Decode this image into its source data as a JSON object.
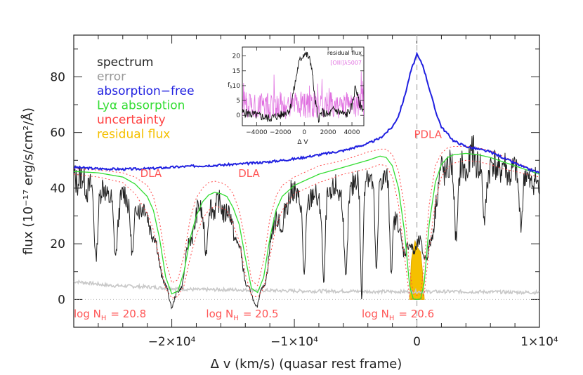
{
  "chart_data": {
    "type": "line",
    "xlabel": "Δ v (km/s) (quasar rest frame)",
    "ylabel": "flux (10⁻¹⁷ erg/s/cm²/Å)",
    "xlim": [
      -28000,
      10000
    ],
    "ylim": [
      -10,
      95
    ],
    "x_ticks": [
      {
        "value": -20000,
        "label": "−2×10⁴"
      },
      {
        "value": -10000,
        "label": "−1×10⁴"
      },
      {
        "value": 0,
        "label": "0"
      },
      {
        "value": 10000,
        "label": "1×10⁴"
      }
    ],
    "y_ticks": [
      {
        "value": 0,
        "label": "0"
      },
      {
        "value": 20,
        "label": "20"
      },
      {
        "value": 40,
        "label": "40"
      },
      {
        "value": 60,
        "label": "60"
      },
      {
        "value": 80,
        "label": "80"
      }
    ],
    "legend": [
      {
        "label": "spectrum",
        "color": "#222222"
      },
      {
        "label": "error",
        "color": "#999999"
      },
      {
        "label": "absorption−free",
        "color": "#2020e0"
      },
      {
        "label": "Lyα absorption",
        "color": "#33dd33"
      },
      {
        "label": "uncertainty",
        "color": "#ff4444"
      },
      {
        "label": "residual flux",
        "color": "#f5c000"
      }
    ],
    "absorbers": [
      {
        "name": "DLA",
        "center": -20000,
        "logN_label": "log N",
        "logN_sub": "H",
        "logN_value": "= 20.8",
        "name_x": -21700,
        "name_y": 44,
        "logN_x": -28000
      },
      {
        "name": "DLA",
        "center": -13500,
        "logN_label": "log N",
        "logN_sub": "H",
        "logN_value": "= 20.5",
        "name_x": -13700,
        "name_y": 44,
        "logN_x": -17200
      },
      {
        "name": "PDLA",
        "center": 0,
        "logN_label": "log N",
        "logN_sub": "H",
        "logN_value": "= 20.6",
        "name_x": 900,
        "name_y": 58,
        "logN_x": -4500
      }
    ],
    "absorption_free": {
      "x": [
        -28000,
        -26000,
        -24000,
        -22000,
        -20000,
        -18000,
        -16000,
        -14000,
        -12000,
        -10000,
        -8000,
        -6000,
        -4000,
        -3000,
        -2000,
        -1500,
        -1000,
        -500,
        0,
        500,
        1000,
        1500,
        2000,
        3000,
        4000,
        5000,
        6000,
        7000,
        8000,
        9000,
        10000
      ],
      "y": [
        47.5,
        47,
        46.8,
        47,
        47.5,
        48,
        48.3,
        48.8,
        49.5,
        50.5,
        52,
        53.5,
        56,
        58,
        62,
        66,
        73,
        82,
        88,
        84,
        76,
        68,
        62,
        57,
        55,
        54,
        53,
        51,
        49,
        47,
        45.5
      ]
    },
    "lya_model": {
      "x": [
        -28000,
        -26000,
        -24000,
        -23000,
        -22000,
        -21500,
        -21000,
        -20500,
        -20000,
        -19500,
        -19000,
        -18500,
        -18000,
        -17500,
        -17000,
        -16500,
        -16000,
        -15500,
        -15000,
        -14500,
        -14000,
        -13500,
        -13000,
        -12500,
        -12000,
        -11500,
        -11000,
        -10000,
        -8000,
        -6000,
        -4000,
        -3000,
        -2500,
        -2000,
        -1500,
        -1000,
        -600,
        -300,
        0,
        300,
        600,
        1000,
        1500,
        2000,
        2500,
        3000,
        4000,
        5000,
        6000,
        7000,
        8000,
        9000,
        10000
      ],
      "y": [
        46,
        45.5,
        44,
        41.5,
        37,
        32,
        22,
        8,
        2,
        3,
        10,
        22,
        30,
        35,
        37.5,
        38.5,
        38,
        37,
        33,
        27,
        15,
        4,
        2.5,
        8,
        22,
        32,
        37,
        41,
        45,
        47.5,
        50,
        51.5,
        51,
        48,
        40,
        24,
        5,
        0.2,
        0,
        0.2,
        6,
        27,
        42,
        48.5,
        51,
        52,
        52.5,
        52,
        51,
        49.5,
        48,
        46.5,
        45
      ]
    },
    "uncertainty_upper": {
      "x": [
        -28000,
        -26000,
        -24000,
        -23000,
        -22000,
        -21500,
        -21000,
        -20500,
        -20000,
        -19500,
        -19000,
        -18500,
        -18000,
        -17500,
        -17000,
        -16500,
        -16000,
        -15500,
        -15000,
        -14500,
        -14000,
        -13500,
        -13000,
        -12500,
        -12000,
        -11500,
        -11000,
        -10000,
        -8000,
        -6000,
        -4000,
        -3000,
        -2500,
        -2000,
        -1500,
        -1000,
        -600,
        -300,
        0,
        300,
        600,
        1000,
        1500,
        2000,
        2500,
        3000,
        4000,
        5000,
        6000,
        7000,
        8000,
        9000,
        10000
      ],
      "y": [
        47,
        46.5,
        45.5,
        44,
        41,
        37,
        28,
        14,
        6,
        7,
        16,
        29,
        36.5,
        40,
        42,
        42.5,
        42,
        41,
        38,
        32,
        21,
        7,
        5,
        14,
        29,
        37,
        41,
        44,
        48,
        50,
        53,
        54,
        54,
        52,
        46,
        33,
        11,
        2,
        1.5,
        2,
        13,
        34,
        48,
        52.5,
        54.5,
        55,
        55,
        54.5,
        53.5,
        51.5,
        49.5,
        47.5,
        45.5
      ]
    },
    "uncertainty_lower": {
      "x": [
        -28000,
        -26000,
        -24000,
        -23000,
        -22000,
        -21500,
        -21000,
        -20500,
        -20000,
        -19500,
        -19000,
        -18500,
        -18000,
        -17500,
        -17000,
        -16500,
        -16000,
        -15500,
        -15000,
        -14500,
        -14000,
        -13500,
        -13000,
        -12500,
        -12000,
        -11500,
        -11000,
        -10000,
        -8000,
        -6000,
        -4000,
        -3000,
        -2500,
        -2000,
        -1500,
        -1000,
        -600,
        -300,
        0,
        300,
        600,
        1000,
        1500,
        2000,
        2500,
        3000,
        4000,
        5000,
        6000,
        7000,
        8000,
        9000,
        10000
      ],
      "y": [
        45,
        44,
        42,
        38,
        31,
        25,
        14,
        4,
        0.5,
        1,
        5,
        15,
        23,
        29,
        32,
        33.5,
        33,
        32,
        27,
        21,
        9,
        1.5,
        0.8,
        4,
        15,
        26,
        32,
        38,
        42,
        45,
        47,
        48.5,
        48,
        44,
        34,
        15,
        1,
        0,
        0,
        0,
        2,
        18,
        35,
        44,
        47.5,
        49,
        50,
        49.5,
        48.5,
        47,
        46,
        45,
        44
      ]
    },
    "spectrum_anchors": {
      "x": [
        -28000,
        -26500,
        -25000,
        -23500,
        -22500,
        -21800,
        -21000,
        -20500,
        -20000,
        -19500,
        -19000,
        -18500,
        -17800,
        -17000,
        -16500,
        -16000,
        -15500,
        -15000,
        -14500,
        -14000,
        -13500,
        -13000,
        -12500,
        -12000,
        -11500,
        -11000,
        -10000,
        -9000,
        -8000,
        -7000,
        -6000,
        -5000,
        -4000,
        -3000,
        -2500,
        -2000,
        -1500,
        -1200,
        -900,
        -600,
        -300,
        0,
        300,
        600,
        900,
        1200,
        1600,
        2000,
        2500,
        3000,
        3500,
        4000,
        4500,
        5000,
        6000,
        7000,
        8000,
        9000,
        10000
      ],
      "y": [
        45,
        40,
        38,
        36,
        34,
        28,
        14,
        3,
        -1,
        1,
        10,
        22,
        32,
        33,
        34,
        33,
        32,
        26,
        18,
        8,
        0,
        -1,
        4,
        18,
        30,
        36,
        38,
        37,
        36,
        38,
        40,
        42,
        44,
        46,
        43,
        33,
        25,
        20,
        18,
        18,
        19,
        19,
        19,
        17,
        16,
        20,
        38,
        46,
        47,
        48,
        47,
        46,
        52,
        50,
        48,
        47,
        45,
        44,
        40
      ]
    },
    "spectrum_dips": [
      {
        "x": -9200,
        "depth": 0.8,
        "width": 180
      },
      {
        "x": -7600,
        "depth": 0.9,
        "width": 160
      },
      {
        "x": -5800,
        "depth": 0.85,
        "width": 200
      },
      {
        "x": -4500,
        "depth": 0.95,
        "width": 150
      },
      {
        "x": -3300,
        "depth": 0.8,
        "width": 180
      },
      {
        "x": -2100,
        "depth": 0.7,
        "width": 150
      },
      {
        "x": -26200,
        "depth": 0.6,
        "width": 200
      },
      {
        "x": -24600,
        "depth": 0.6,
        "width": 220
      },
      {
        "x": -23200,
        "depth": 0.55,
        "width": 200
      },
      {
        "x": -17200,
        "depth": 0.5,
        "width": 180
      },
      {
        "x": -11000,
        "depth": 0.4,
        "width": 200
      },
      {
        "x": 3200,
        "depth": 0.5,
        "width": 200
      },
      {
        "x": 5500,
        "depth": 0.45,
        "width": 200
      },
      {
        "x": 8500,
        "depth": 0.35,
        "width": 200
      }
    ],
    "error": {
      "x": [
        -28000,
        -25000,
        -22000,
        -20000,
        -18000,
        -15000,
        -12000,
        -9000,
        -6000,
        -3000,
        0,
        3000,
        6000,
        10000
      ],
      "y": [
        6.5,
        5,
        4.5,
        4,
        3.5,
        3.5,
        3.2,
        3,
        3,
        2.8,
        2.8,
        2.8,
        2.7,
        2.5
      ]
    },
    "residual_flux": {
      "x": [
        -600,
        -450,
        -300,
        -150,
        0,
        150,
        300,
        450,
        600
      ],
      "y": [
        0,
        14,
        18,
        21,
        19,
        18,
        17,
        10,
        0
      ]
    },
    "inset": {
      "title": "residual flux",
      "ylabel": "f",
      "ylabel_sub": "λ",
      "xlabel": "Δ V",
      "xlim": [
        -5200,
        5000
      ],
      "ylim": [
        -3.5,
        23
      ],
      "x_ticks": [
        {
          "value": -4000,
          "label": "−4000"
        },
        {
          "value": -2000,
          "label": "−2000"
        },
        {
          "value": 0,
          "label": "0"
        },
        {
          "value": 2000,
          "label": "2000"
        },
        {
          "value": 4000,
          "label": "4000"
        }
      ],
      "y_ticks": [
        {
          "value": 0,
          "label": "0"
        },
        {
          "value": 5,
          "label": "5"
        },
        {
          "value": 10,
          "label": "10"
        },
        {
          "value": 15,
          "label": "15"
        },
        {
          "value": 20,
          "label": "20"
        }
      ],
      "legend": [
        {
          "label": "residual flux",
          "color": "#111111"
        },
        {
          "label": "[OIII]λ5007",
          "color": "#e070e0"
        }
      ],
      "residual": {
        "x": [
          -5200,
          -4000,
          -3000,
          -2000,
          -1200,
          -800,
          -500,
          -300,
          0,
          300,
          600,
          900,
          1200,
          1500,
          2000,
          2500,
          3000,
          3500,
          4000,
          4300,
          4600,
          5000
        ],
        "y": [
          1,
          0,
          -1,
          0,
          2,
          10,
          17,
          19,
          21,
          20,
          17,
          5,
          -1,
          1,
          0,
          2,
          1,
          0,
          3,
          10,
          4,
          2
        ]
      },
      "oiii_level": 3.5
    }
  }
}
